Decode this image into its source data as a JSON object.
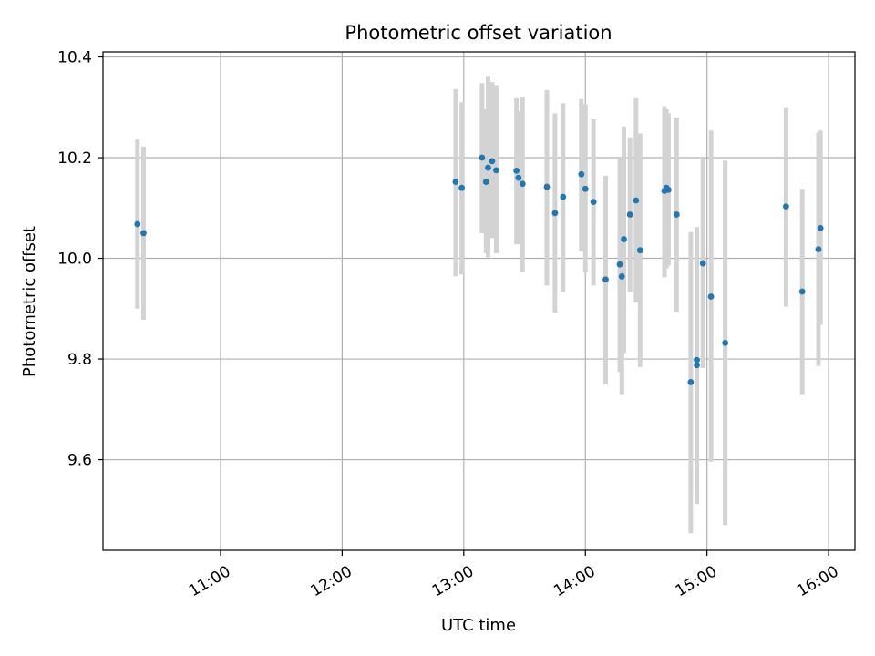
{
  "chart_data": {
    "type": "scatter",
    "title": "Photometric offset variation",
    "xlabel": "UTC time",
    "ylabel": "Photometric offset",
    "x_unit": "UTC time (HH:MM)",
    "xlim": [
      "10:02",
      "16:13"
    ],
    "ylim": [
      9.42,
      10.41
    ],
    "x_ticks": [
      "11:00",
      "12:00",
      "13:00",
      "14:00",
      "15:00",
      "16:00"
    ],
    "y_ticks": [
      9.6,
      9.8,
      10.0,
      10.2,
      10.4
    ],
    "y_tick_labels": [
      "9.6",
      "9.8",
      "10.0",
      "10.2",
      "10.4"
    ],
    "grid": true,
    "error_bars": true,
    "colors": {
      "point": "#1f77b4",
      "error_bar": "#d3d3d3",
      "grid": "#b0b0b0"
    },
    "points": [
      {
        "x": "10:19",
        "y": 10.068,
        "y_low": 9.9,
        "y_high": 10.236
      },
      {
        "x": "10:22",
        "y": 10.05,
        "y_low": 9.878,
        "y_high": 10.222
      },
      {
        "x": "12:56",
        "y": 10.152,
        "y_low": 9.964,
        "y_high": 10.336
      },
      {
        "x": "12:59",
        "y": 10.14,
        "y_low": 9.968,
        "y_high": 10.31
      },
      {
        "x": "13:09",
        "y": 10.2,
        "y_low": 10.05,
        "y_high": 10.348
      },
      {
        "x": "13:11",
        "y": 10.152,
        "y_low": 10.01,
        "y_high": 10.296
      },
      {
        "x": "13:12",
        "y": 10.18,
        "y_low": 10.002,
        "y_high": 10.362
      },
      {
        "x": "13:14",
        "y": 10.193,
        "y_low": 10.04,
        "y_high": 10.35
      },
      {
        "x": "13:16",
        "y": 10.175,
        "y_low": 10.01,
        "y_high": 10.344
      },
      {
        "x": "13:26",
        "y": 10.174,
        "y_low": 10.028,
        "y_high": 10.318
      },
      {
        "x": "13:27",
        "y": 10.16,
        "y_low": 10.028,
        "y_high": 10.292
      },
      {
        "x": "13:29",
        "y": 10.148,
        "y_low": 9.972,
        "y_high": 10.32
      },
      {
        "x": "13:41",
        "y": 10.142,
        "y_low": 9.946,
        "y_high": 10.334
      },
      {
        "x": "13:45",
        "y": 10.09,
        "y_low": 9.892,
        "y_high": 10.288
      },
      {
        "x": "13:49",
        "y": 10.122,
        "y_low": 9.934,
        "y_high": 10.308
      },
      {
        "x": "13:58",
        "y": 10.167,
        "y_low": 10.014,
        "y_high": 10.316
      },
      {
        "x": "14:00",
        "y": 10.138,
        "y_low": 9.972,
        "y_high": 10.306
      },
      {
        "x": "14:04",
        "y": 10.112,
        "y_low": 9.946,
        "y_high": 10.276
      },
      {
        "x": "14:10",
        "y": 9.958,
        "y_low": 9.75,
        "y_high": 10.164
      },
      {
        "x": "14:17",
        "y": 9.988,
        "y_low": 9.774,
        "y_high": 10.2
      },
      {
        "x": "14:18",
        "y": 9.964,
        "y_low": 9.73,
        "y_high": 10.2
      },
      {
        "x": "14:19",
        "y": 10.038,
        "y_low": 9.812,
        "y_high": 10.262
      },
      {
        "x": "14:22",
        "y": 10.087,
        "y_low": 9.934,
        "y_high": 10.24
      },
      {
        "x": "14:25",
        "y": 10.115,
        "y_low": 9.912,
        "y_high": 10.318
      },
      {
        "x": "14:27",
        "y": 10.016,
        "y_low": 9.784,
        "y_high": 10.248
      },
      {
        "x": "14:39",
        "y": 10.134,
        "y_low": 9.962,
        "y_high": 10.302
      },
      {
        "x": "14:40",
        "y": 10.14,
        "y_low": 9.98,
        "y_high": 10.296
      },
      {
        "x": "14:41",
        "y": 10.136,
        "y_low": 9.986,
        "y_high": 10.288
      },
      {
        "x": "14:45",
        "y": 10.087,
        "y_low": 9.894,
        "y_high": 10.28
      },
      {
        "x": "14:52",
        "y": 9.754,
        "y_low": 9.454,
        "y_high": 10.052
      },
      {
        "x": "14:55",
        "y": 9.798,
        "y_low": 9.552,
        "y_high": 10.044
      },
      {
        "x": "14:55",
        "y": 9.788,
        "y_low": 9.512,
        "y_high": 10.062
      },
      {
        "x": "14:58",
        "y": 9.99,
        "y_low": 9.782,
        "y_high": 10.198
      },
      {
        "x": "15:02",
        "y": 9.924,
        "y_low": 9.596,
        "y_high": 10.254
      },
      {
        "x": "15:09",
        "y": 9.832,
        "y_low": 9.47,
        "y_high": 10.194
      },
      {
        "x": "15:39",
        "y": 10.103,
        "y_low": 9.904,
        "y_high": 10.3
      },
      {
        "x": "15:47",
        "y": 9.934,
        "y_low": 9.73,
        "y_high": 10.138
      },
      {
        "x": "15:55",
        "y": 10.018,
        "y_low": 9.786,
        "y_high": 10.25
      },
      {
        "x": "15:56",
        "y": 10.06,
        "y_low": 9.868,
        "y_high": 10.254
      }
    ]
  }
}
